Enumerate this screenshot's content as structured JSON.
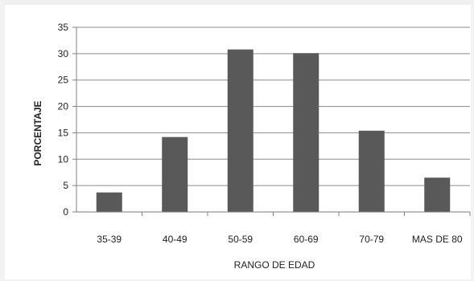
{
  "chart_data": {
    "type": "bar",
    "categories": [
      "35-39",
      "40-49",
      "50-59",
      "60-69",
      "70-79",
      "MAS DE 80"
    ],
    "values": [
      3.7,
      14.2,
      30.8,
      30.1,
      15.4,
      6.5
    ],
    "title": "",
    "xlabel": "RANGO DE EDAD",
    "ylabel": "PORCENTAJE",
    "ylim": [
      0,
      35
    ],
    "yticks": [
      0,
      5,
      10,
      15,
      20,
      25,
      30,
      35
    ],
    "grid": true,
    "legend": "none",
    "colors": {
      "bar": "#595959",
      "grid": "#8c8c8c",
      "axis": "#7f7f7f",
      "text": "#222222"
    }
  }
}
